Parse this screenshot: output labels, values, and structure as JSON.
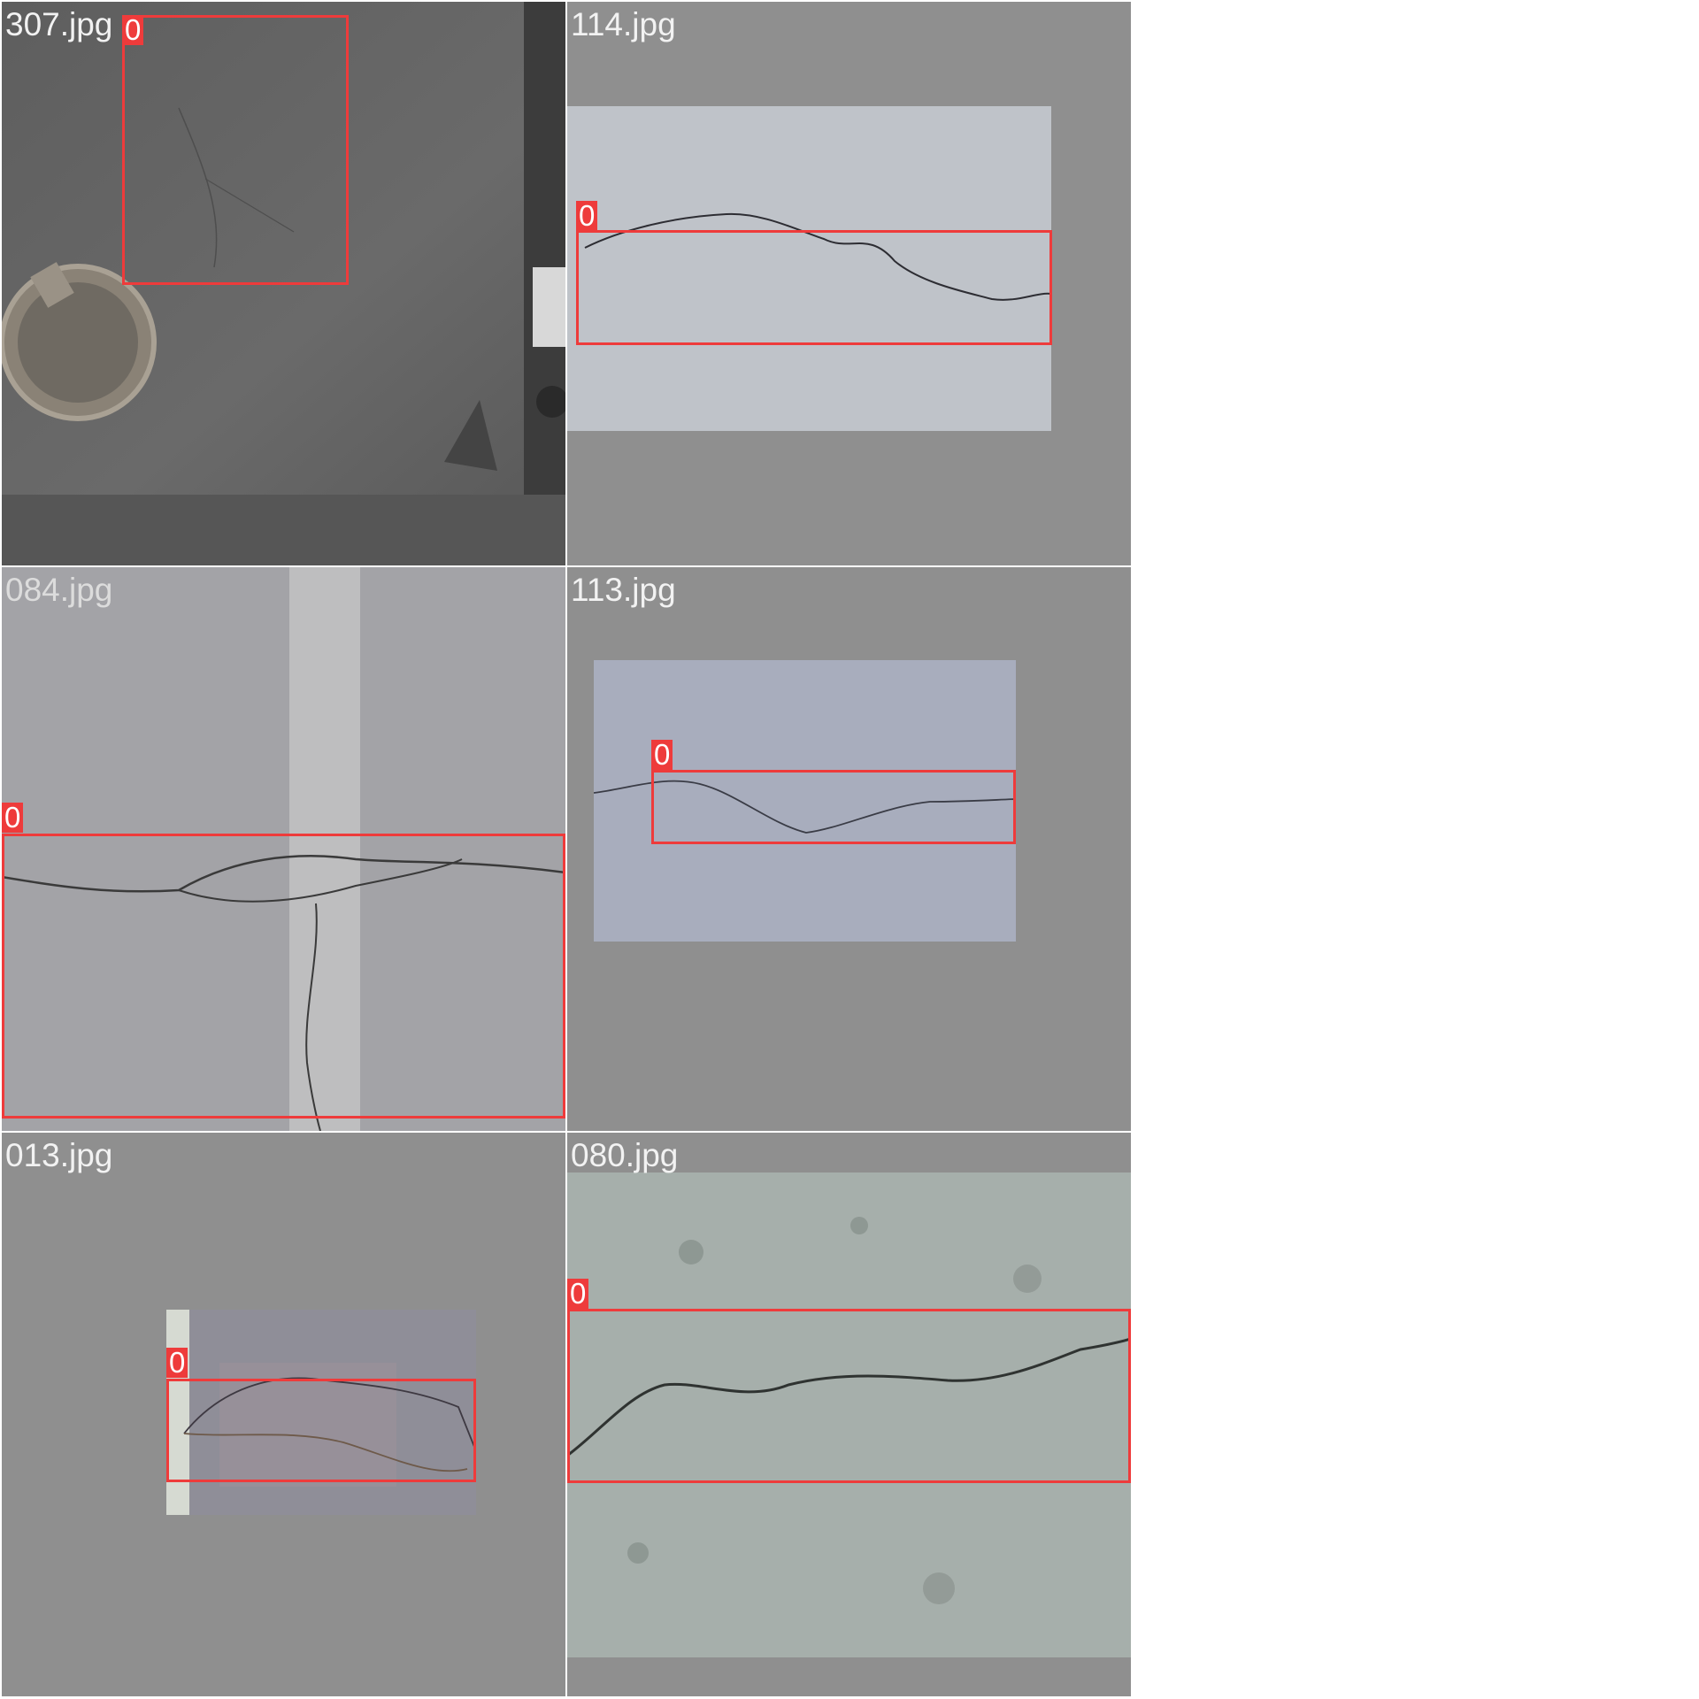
{
  "colors": {
    "box": "#ee3b3b",
    "letterbox": "#8f8f8f",
    "grid_line": "#ffffff"
  },
  "tiles": [
    {
      "filename": "307.jpg",
      "class_label": "0"
    },
    {
      "filename": "114.jpg",
      "class_label": "0"
    },
    {
      "filename": "084.jpg",
      "class_label": "0"
    },
    {
      "filename": "113.jpg",
      "class_label": "0"
    },
    {
      "filename": "013.jpg",
      "class_label": "0"
    },
    {
      "filename": "080.jpg",
      "class_label": "0"
    }
  ]
}
